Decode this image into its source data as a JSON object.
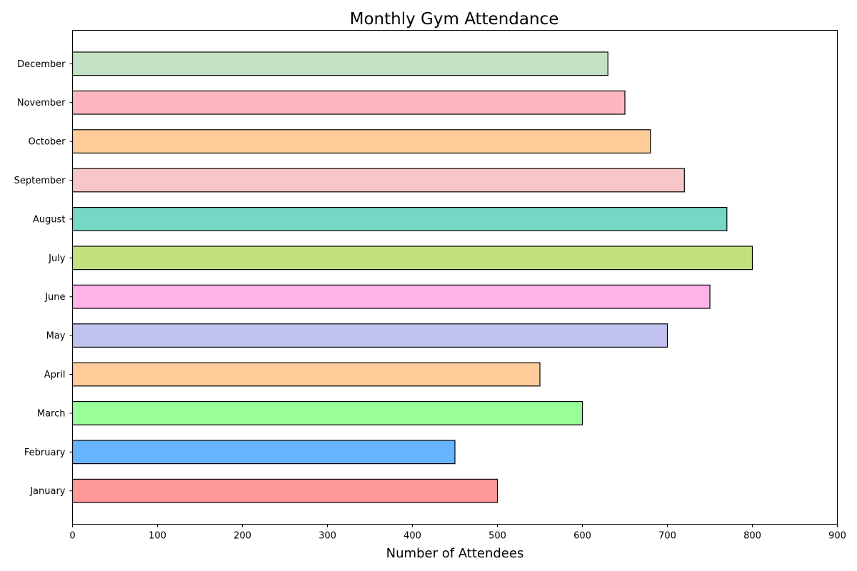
{
  "chart_data": {
    "type": "bar",
    "orientation": "horizontal",
    "title": "Monthly Gym Attendance",
    "xlabel": "Number of Attendees",
    "ylabel": "",
    "xlim": [
      0,
      900
    ],
    "xticks": [
      0,
      100,
      200,
      300,
      400,
      500,
      600,
      700,
      800,
      900
    ],
    "grid": false,
    "legend": "none",
    "bar_edge_color": "#000000",
    "categories": [
      "January",
      "February",
      "March",
      "April",
      "May",
      "June",
      "July",
      "August",
      "September",
      "October",
      "November",
      "December"
    ],
    "values": [
      500,
      450,
      600,
      550,
      700,
      750,
      800,
      770,
      720,
      680,
      650,
      630
    ],
    "colors": [
      "#ff9999",
      "#66b3ff",
      "#99ff99",
      "#ffcc99",
      "#c2c2f0",
      "#ffb3e6",
      "#c4e17f",
      "#76d7c4",
      "#f7c6c7",
      "#ffcc99",
      "#ffb6c1",
      "#c5e1c5"
    ]
  }
}
